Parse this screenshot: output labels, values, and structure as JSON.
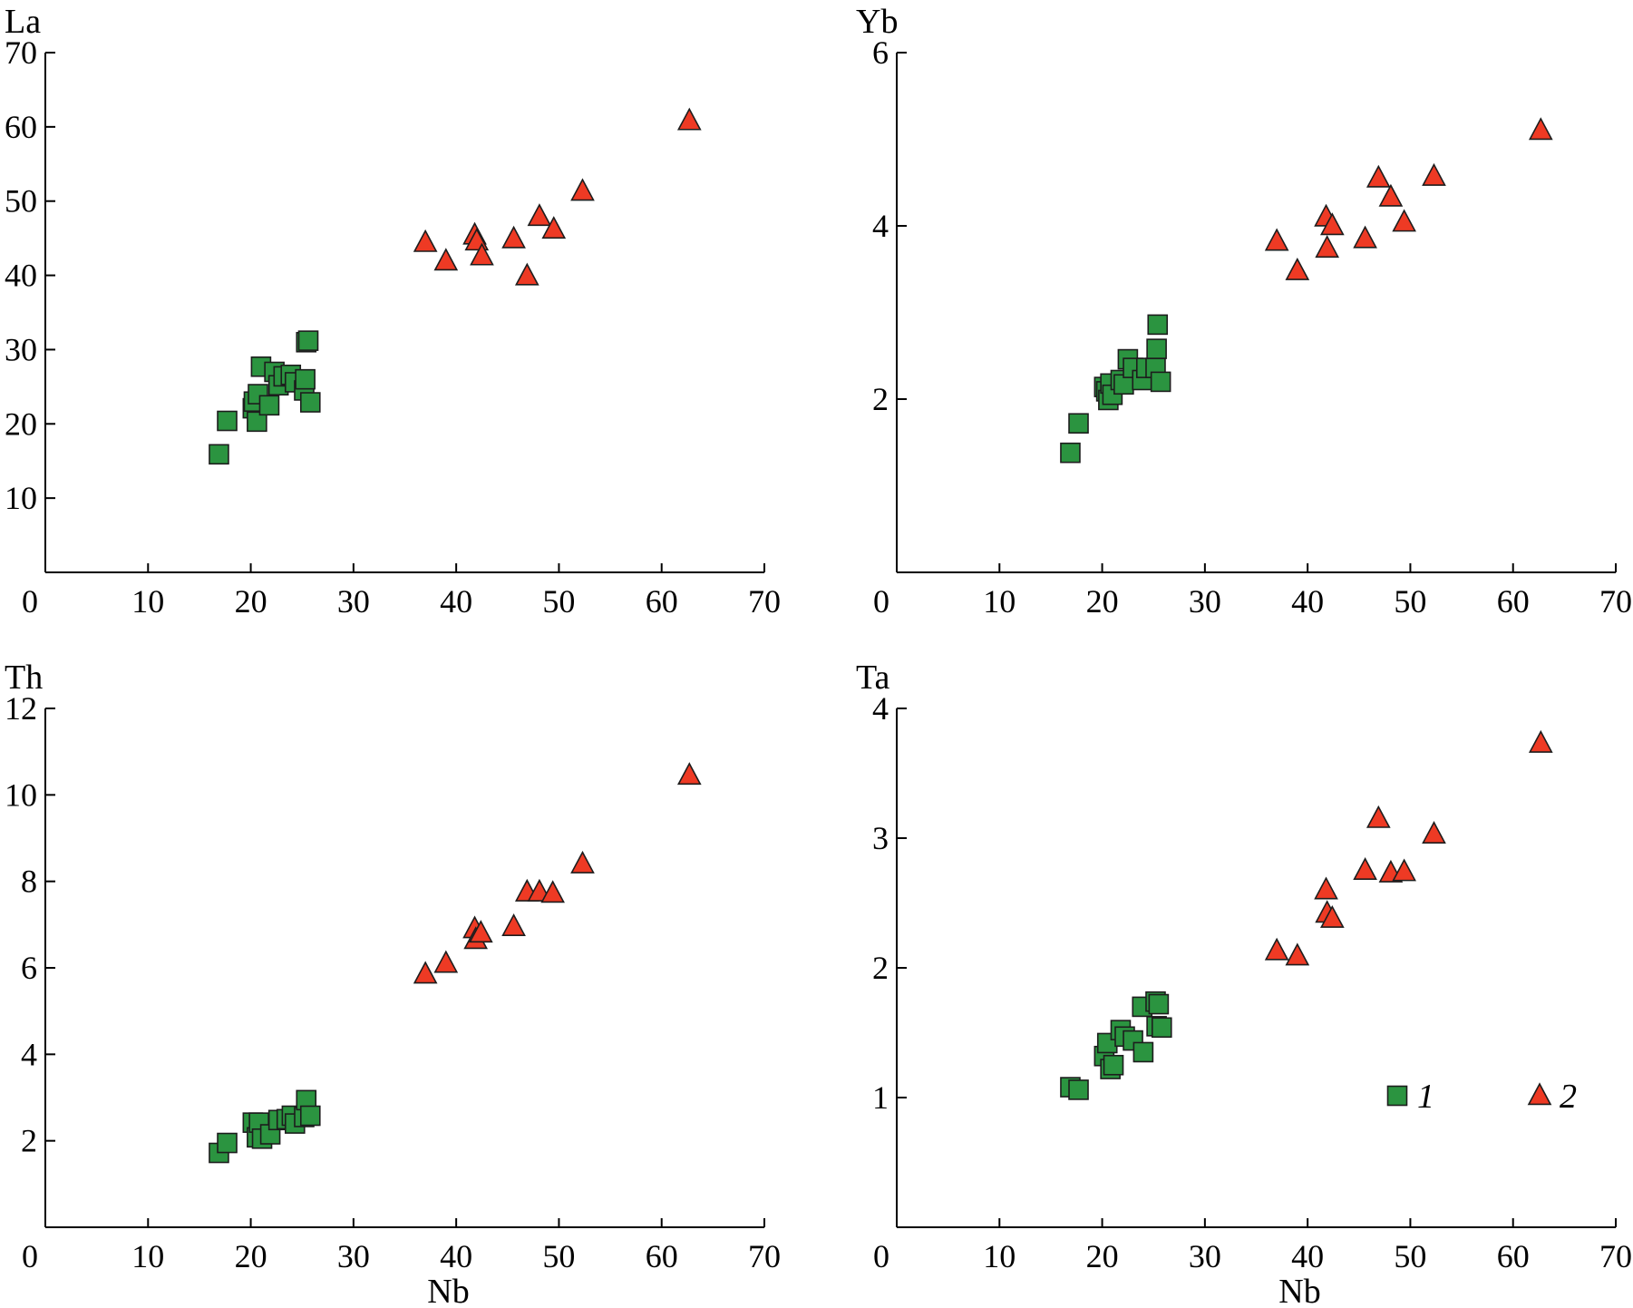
{
  "colors": {
    "group_1": "#2b9440",
    "group_2": "#ee3a24"
  },
  "legend": {
    "items": [
      {
        "label": "1",
        "symbol": "square",
        "series": "1"
      },
      {
        "label": "2",
        "symbol": "triangle",
        "series": "2"
      }
    ]
  },
  "chart_data": [
    {
      "id": "la",
      "type": "scatter",
      "xlabel": "",
      "ylabel": "La",
      "xlim": [
        0,
        70
      ],
      "ylim": [
        0,
        70
      ],
      "x_ticks": [
        0,
        10,
        20,
        30,
        40,
        50,
        60,
        70
      ],
      "y_ticks": [
        10,
        20,
        30,
        40,
        50,
        60,
        70
      ],
      "series": [
        {
          "name": "1",
          "marker": "square",
          "points": [
            [
              16.9,
              15.9
            ],
            [
              17.7,
              20.4
            ],
            [
              20.2,
              22.1
            ],
            [
              20.3,
              23.0
            ],
            [
              20.6,
              20.3
            ],
            [
              20.7,
              24.0
            ],
            [
              21.0,
              27.7
            ],
            [
              21.8,
              22.5
            ],
            [
              22.3,
              27.0
            ],
            [
              22.7,
              25.2
            ],
            [
              23.2,
              26.4
            ],
            [
              23.9,
              26.6
            ],
            [
              24.3,
              25.6
            ],
            [
              25.2,
              24.5
            ],
            [
              25.3,
              26.0
            ],
            [
              25.4,
              31.0
            ],
            [
              25.6,
              31.2
            ],
            [
              25.8,
              22.9
            ]
          ]
        },
        {
          "name": "2",
          "marker": "triangle",
          "points": [
            [
              37.0,
              44.4
            ],
            [
              39.0,
              41.9
            ],
            [
              41.8,
              45.4
            ],
            [
              42.0,
              44.6
            ],
            [
              42.5,
              42.6
            ],
            [
              45.6,
              44.9
            ],
            [
              46.9,
              39.9
            ],
            [
              48.1,
              47.9
            ],
            [
              49.5,
              46.2
            ],
            [
              52.3,
              51.3
            ],
            [
              62.7,
              60.8
            ]
          ]
        }
      ]
    },
    {
      "id": "yb",
      "type": "scatter",
      "xlabel": "",
      "ylabel": "Yb",
      "xlim": [
        0,
        70
      ],
      "ylim": [
        0,
        6
      ],
      "x_ticks": [
        0,
        10,
        20,
        30,
        40,
        50,
        60,
        70
      ],
      "y_ticks": [
        2,
        4,
        6
      ],
      "series": [
        {
          "name": "1",
          "marker": "square",
          "points": [
            [
              16.9,
              1.38
            ],
            [
              17.7,
              1.72
            ],
            [
              20.2,
              2.14
            ],
            [
              20.4,
              2.09
            ],
            [
              20.6,
              1.99
            ],
            [
              20.8,
              2.18
            ],
            [
              21.0,
              2.05
            ],
            [
              21.8,
              2.22
            ],
            [
              22.1,
              2.17
            ],
            [
              22.5,
              2.46
            ],
            [
              23.0,
              2.36
            ],
            [
              23.9,
              2.22
            ],
            [
              24.3,
              2.36
            ],
            [
              25.2,
              2.36
            ],
            [
              25.3,
              2.58
            ],
            [
              25.4,
              2.86
            ],
            [
              25.7,
              2.2
            ]
          ]
        },
        {
          "name": "2",
          "marker": "triangle",
          "points": [
            [
              37.0,
              3.82
            ],
            [
              39.0,
              3.48
            ],
            [
              41.8,
              4.1
            ],
            [
              41.9,
              3.74
            ],
            [
              42.4,
              4.0
            ],
            [
              45.6,
              3.85
            ],
            [
              46.9,
              4.55
            ],
            [
              48.1,
              4.33
            ],
            [
              49.4,
              4.04
            ],
            [
              52.3,
              4.57
            ],
            [
              62.7,
              5.1
            ]
          ]
        }
      ]
    },
    {
      "id": "th",
      "type": "scatter",
      "xlabel": "Nb",
      "ylabel": "Th",
      "xlim": [
        0,
        70
      ],
      "ylim": [
        0,
        12
      ],
      "x_ticks": [
        0,
        10,
        20,
        30,
        40,
        50,
        60,
        70
      ],
      "y_ticks": [
        2,
        4,
        6,
        8,
        10,
        12
      ],
      "series": [
        {
          "name": "1",
          "marker": "square",
          "points": [
            [
              16.9,
              1.72
            ],
            [
              17.7,
              1.95
            ],
            [
              20.2,
              2.42
            ],
            [
              20.6,
              2.08
            ],
            [
              20.8,
              2.42
            ],
            [
              21.1,
              2.05
            ],
            [
              21.9,
              2.15
            ],
            [
              22.7,
              2.48
            ],
            [
              23.5,
              2.5
            ],
            [
              24.0,
              2.58
            ],
            [
              24.3,
              2.4
            ],
            [
              25.2,
              2.55
            ],
            [
              25.4,
              2.94
            ],
            [
              25.8,
              2.58
            ]
          ]
        },
        {
          "name": "2",
          "marker": "triangle",
          "points": [
            [
              37.0,
              5.85
            ],
            [
              39.0,
              6.1
            ],
            [
              41.8,
              6.9
            ],
            [
              41.9,
              6.65
            ],
            [
              42.4,
              6.8
            ],
            [
              45.6,
              6.95
            ],
            [
              46.9,
              7.75
            ],
            [
              48.1,
              7.75
            ],
            [
              49.4,
              7.72
            ],
            [
              52.3,
              8.4
            ],
            [
              62.7,
              10.45
            ]
          ]
        }
      ]
    },
    {
      "id": "ta",
      "type": "scatter",
      "xlabel": "Nb",
      "ylabel": "Ta",
      "xlim": [
        0,
        70
      ],
      "ylim": [
        0,
        4
      ],
      "x_ticks": [
        0,
        10,
        20,
        30,
        40,
        50,
        60,
        70
      ],
      "y_ticks": [
        1,
        2,
        3,
        4
      ],
      "series": [
        {
          "name": "1",
          "marker": "square",
          "points": [
            [
              16.9,
              1.08
            ],
            [
              17.7,
              1.06
            ],
            [
              20.2,
              1.32
            ],
            [
              20.5,
              1.42
            ],
            [
              20.8,
              1.22
            ],
            [
              21.1,
              1.25
            ],
            [
              21.8,
              1.52
            ],
            [
              22.2,
              1.47
            ],
            [
              23.0,
              1.44
            ],
            [
              23.9,
              1.7
            ],
            [
              24.0,
              1.35
            ],
            [
              25.2,
              1.74
            ],
            [
              25.3,
              1.55
            ],
            [
              25.5,
              1.72
            ],
            [
              25.8,
              1.54
            ]
          ]
        },
        {
          "name": "2",
          "marker": "triangle",
          "points": [
            [
              37.0,
              2.13
            ],
            [
              39.0,
              2.09
            ],
            [
              41.8,
              2.6
            ],
            [
              41.9,
              2.42
            ],
            [
              42.4,
              2.38
            ],
            [
              45.6,
              2.75
            ],
            [
              46.9,
              3.15
            ],
            [
              48.1,
              2.73
            ],
            [
              49.4,
              2.74
            ],
            [
              52.3,
              3.03
            ],
            [
              62.7,
              3.73
            ]
          ]
        }
      ]
    }
  ]
}
